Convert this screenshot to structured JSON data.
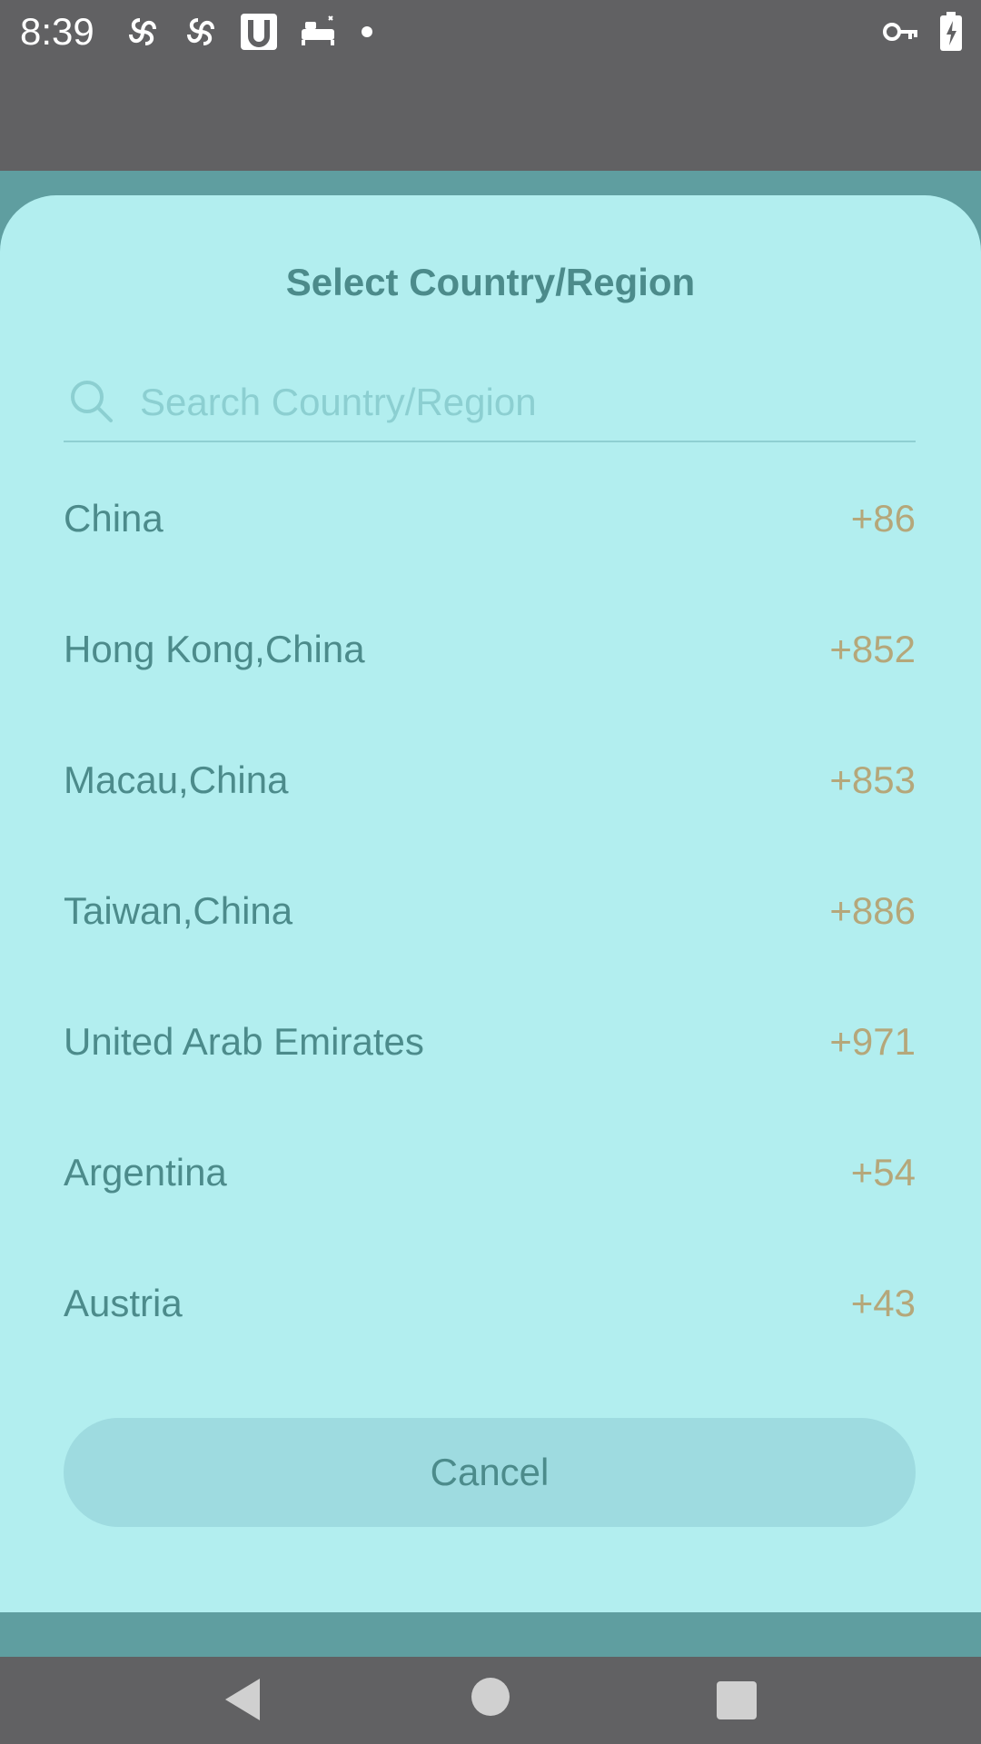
{
  "status_bar": {
    "time": "8:39",
    "icons": [
      "pinwheel-icon",
      "pinwheel-icon",
      "u-app-icon",
      "bed-icon",
      "dot-icon"
    ],
    "right_icons": [
      "key-icon",
      "battery-charging-icon"
    ]
  },
  "dialog": {
    "title": "Select Country/Region",
    "search": {
      "placeholder": "Search Country/Region",
      "value": ""
    },
    "countries": [
      {
        "name": "China",
        "code": "+86"
      },
      {
        "name": "Hong Kong,China",
        "code": "+852"
      },
      {
        "name": "Macau,China",
        "code": "+853"
      },
      {
        "name": "Taiwan,China",
        "code": "+886"
      },
      {
        "name": "United Arab Emirates",
        "code": "+971"
      },
      {
        "name": "Argentina",
        "code": "+54"
      },
      {
        "name": "Austria",
        "code": "+43"
      }
    ],
    "cancel_label": "Cancel"
  },
  "nav_bar": {
    "buttons": [
      "back-icon",
      "home-icon",
      "recents-icon"
    ]
  },
  "colors": {
    "dialog_bg": "#b2eeef",
    "title": "#4c8b8b",
    "code": "#b5a77a",
    "cancel_bg": "#9edbe0"
  }
}
